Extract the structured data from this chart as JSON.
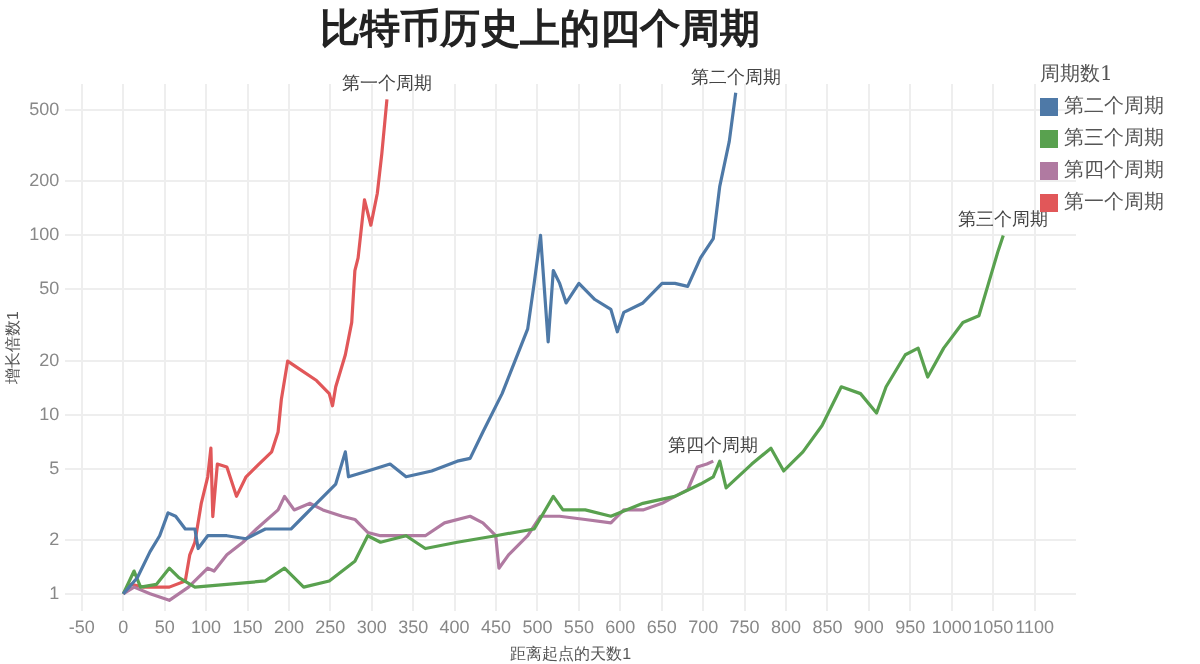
{
  "chart_data": {
    "type": "line",
    "title": "比特币历史上的四个周期",
    "xlabel": "距离起点的天数1",
    "ylabel": "增长倍数1",
    "legend_title": "周期数1",
    "legend": "top right",
    "grid": true,
    "log": "y",
    "line_style": "solid",
    "marker": "none",
    "xlim": [
      -70,
      1150
    ],
    "xticks": [
      -50,
      0,
      50,
      100,
      150,
      200,
      250,
      300,
      350,
      400,
      450,
      500,
      550,
      600,
      650,
      700,
      750,
      800,
      850,
      900,
      950,
      1000,
      1050,
      1100
    ],
    "ylim": [
      0.8,
      700
    ],
    "yticks": [
      1,
      2,
      5,
      10,
      20,
      50,
      100,
      200,
      500
    ],
    "series": [
      {
        "name": "第二个周期",
        "color": "#4e79a7",
        "x": [
          0,
          17,
          32.4,
          44,
          54.1,
          63.3,
          74.9,
          86.5,
          90.4,
          102,
          125.1,
          148.3,
          171.5,
          202.4,
          217.8,
          233.3,
          256.5,
          268.1,
          271.9,
          295.1,
          322.1,
          341.4,
          372.3,
          403.2,
          418.7,
          434.1,
          457.3,
          472.8,
          488.2,
          496,
          503.7,
          512.9,
          519.1,
          526.8,
          534.6,
          550,
          569.3,
          588.6,
          596.4,
          604.1,
          627.3,
          650.4,
          665.9,
          681.3,
          696.8,
          712.2,
          720,
          731.5,
          739.3
        ],
        "values": [
          1,
          1.23,
          1.72,
          2.11,
          2.83,
          2.71,
          2.3,
          2.3,
          1.79,
          2.11,
          2.11,
          2.03,
          2.3,
          2.3,
          2.71,
          3.2,
          4.1,
          6.2,
          4.5,
          4.85,
          5.3,
          4.5,
          4.85,
          5.5,
          5.7,
          8,
          13.1,
          19.9,
          30.1,
          54,
          100,
          25.5,
          63.7,
          54,
          42,
          54,
          43.9,
          38.7,
          29,
          37.2,
          42,
          54,
          54,
          52,
          75,
          96,
          188,
          335,
          625
        ]
      },
      {
        "name": "第三个周期",
        "color": "#59a14f",
        "x": [
          0,
          13.1,
          20.9,
          40.2,
          55.6,
          67.2,
          86.5,
          125.1,
          171.5,
          194.7,
          217.8,
          248.7,
          279.6,
          295.1,
          310.5,
          341.4,
          364.6,
          403.2,
          449.6,
          496,
          519.1,
          530.7,
          557.7,
          588.6,
          627.3,
          665.9,
          696.8,
          712.2,
          720,
          727.7,
          758.6,
          781.8,
          797.2,
          820.4,
          843.5,
          866.7,
          889.9,
          909.2,
          920.8,
          944,
          959.5,
          971,
          990.3,
          1013.5,
          1032.8,
          1044.4,
          1056,
          1062.2
        ],
        "values": [
          1,
          1.34,
          1.09,
          1.13,
          1.39,
          1.23,
          1.09,
          1.13,
          1.18,
          1.39,
          1.09,
          1.18,
          1.52,
          2.11,
          1.94,
          2.11,
          1.79,
          1.94,
          2.11,
          2.3,
          3.5,
          2.94,
          2.94,
          2.71,
          3.2,
          3.5,
          4.1,
          4.5,
          5.5,
          3.9,
          5.3,
          6.5,
          4.85,
          6.2,
          8.7,
          14.3,
          13.1,
          10.2,
          14.3,
          21.6,
          23.5,
          16.2,
          23.5,
          32.7,
          35.6,
          54,
          82,
          100
        ]
      },
      {
        "name": "第四个周期",
        "color": "#b07aa1",
        "x": [
          0,
          13.1,
          32.4,
          55.6,
          78.8,
          102,
          109.7,
          125.1,
          144.5,
          160.8,
          186.9,
          194.7,
          206.3,
          225.6,
          241,
          264.2,
          279.6,
          295.1,
          310.5,
          364.6,
          387.8,
          418.7,
          434.1,
          449.6,
          453.5,
          465.1,
          488.2,
          503.7,
          526.8,
          557.7,
          588.6,
          604.1,
          627.3,
          650.4,
          665.9,
          681.3,
          692.9,
          704.5,
          712.2
        ],
        "values": [
          1,
          1.09,
          1,
          0.92,
          1.09,
          1.39,
          1.34,
          1.65,
          1.94,
          2.3,
          2.94,
          3.5,
          2.94,
          3.2,
          2.94,
          2.71,
          2.6,
          2.2,
          2.11,
          2.11,
          2.49,
          2.71,
          2.49,
          2.11,
          1.39,
          1.65,
          2.11,
          2.71,
          2.71,
          2.6,
          2.49,
          2.94,
          2.94,
          3.2,
          3.5,
          3.8,
          5.1,
          5.3,
          5.5
        ]
      },
      {
        "name": "第一个周期",
        "color": "#e15759",
        "x": [
          0,
          9.3,
          24.7,
          55.6,
          74.9,
          80.3,
          86.5,
          94.2,
          102,
          105.8,
          108.1,
          113.6,
          125.1,
          136.7,
          148.3,
          163.8,
          179.2,
          186.9,
          190.8,
          198.5,
          210.1,
          233.3,
          248.7,
          252.6,
          256.5,
          268.1,
          275.8,
          279.6,
          283.5,
          291.2,
          298.9,
          306.7,
          312.1,
          318.3
        ],
        "values": [
          1,
          1.13,
          1.09,
          1.09,
          1.18,
          1.65,
          1.94,
          3.2,
          4.5,
          6.5,
          2.7,
          5.3,
          5.1,
          3.5,
          4.5,
          5.3,
          6.2,
          8,
          12.1,
          19.9,
          18.3,
          15.5,
          13.1,
          11.2,
          14.3,
          21.6,
          32.7,
          63.7,
          75,
          158,
          114,
          172,
          285,
          575
        ]
      }
    ],
    "annotations": [
      {
        "text": "第一个周期",
        "x": 318.3,
        "y": 575
      },
      {
        "text": "第二个周期",
        "x": 739.3,
        "y": 625
      },
      {
        "text": "第三个周期",
        "x": 1062.2,
        "y": 100
      },
      {
        "text": "第四个周期",
        "x": 712.2,
        "y": 5.5
      }
    ]
  }
}
